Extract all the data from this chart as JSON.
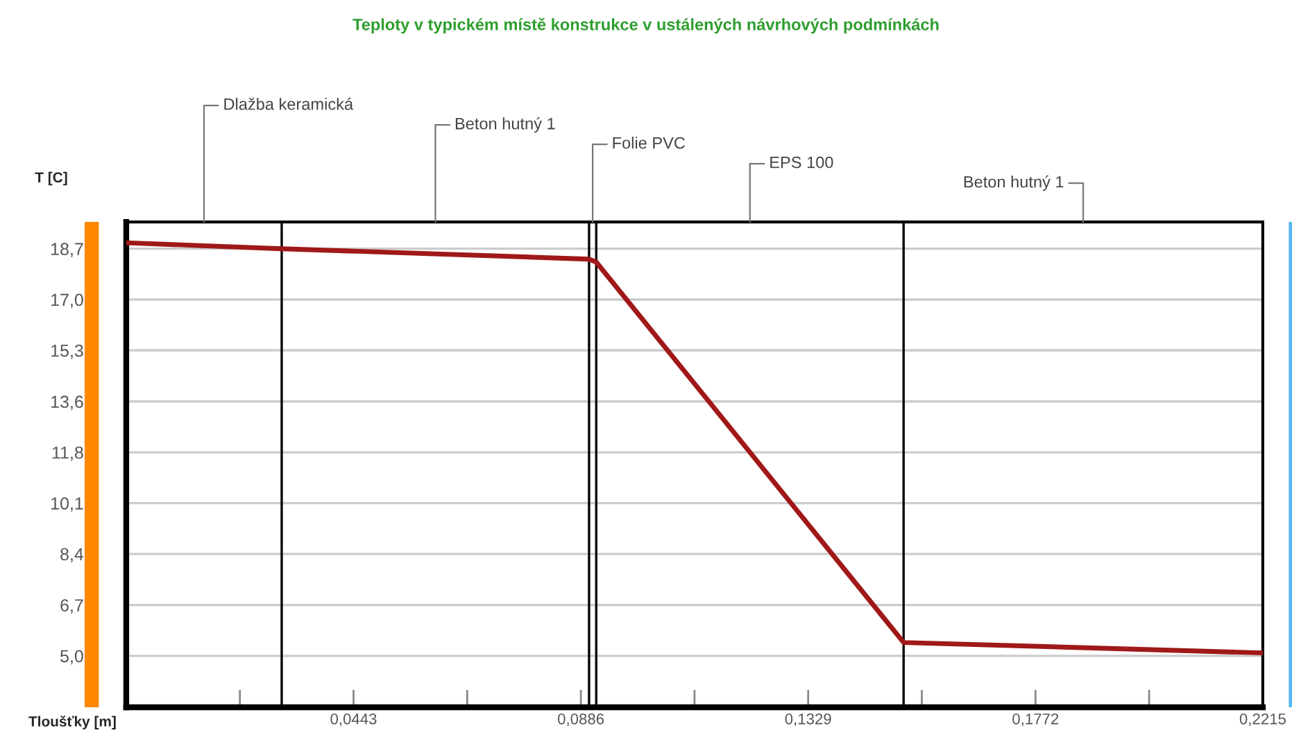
{
  "chart_data": {
    "type": "line",
    "title": "Teploty v typickém místě konstrukce v ustálených návrhových podmínkách",
    "xlabel": "Tloušťky [m]",
    "ylabel": "T [C]",
    "x": [
      0,
      0.0303,
      0.0902,
      0.0916,
      0.1515,
      0.2215
    ],
    "series": [
      {
        "color": "#a01818",
        "values": [
          18.9,
          18.7,
          18.35,
          18.25,
          5.45,
          5.1
        ]
      }
    ],
    "xlim": [
      0,
      0.2215
    ],
    "ylim": [
      3.27,
      19.6
    ],
    "xticks": [
      {
        "value": 0.02215,
        "label": null
      },
      {
        "value": 0.0443,
        "label": "0,0443"
      },
      {
        "value": 0.06645,
        "label": null
      },
      {
        "value": 0.0886,
        "label": "0,0886"
      },
      {
        "value": 0.11075,
        "label": null
      },
      {
        "value": 0.1329,
        "label": "0,1329"
      },
      {
        "value": 0.15505,
        "label": null
      },
      {
        "value": 0.1772,
        "label": "0,1772"
      },
      {
        "value": 0.19935,
        "label": null
      },
      {
        "value": 0.2215,
        "label": "0,2215"
      }
    ],
    "yticks": [
      {
        "value": 5.0,
        "label": "5,0"
      },
      {
        "value": 6.71,
        "label": "6,7"
      },
      {
        "value": 8.43,
        "label": "8,4"
      },
      {
        "value": 10.14,
        "label": "10,1"
      },
      {
        "value": 11.85,
        "label": "11,8"
      },
      {
        "value": 13.56,
        "label": "13,6"
      },
      {
        "value": 15.28,
        "label": "15,3"
      },
      {
        "value": 16.99,
        "label": "17,0"
      },
      {
        "value": 18.7,
        "label": "18,7"
      }
    ],
    "ref_lines": [
      {
        "axis": "x",
        "value": 0.0303,
        "color": "#000000"
      },
      {
        "axis": "x",
        "value": 0.0902,
        "color": "#000000"
      },
      {
        "axis": "x",
        "value": 0.0916,
        "color": "#000000"
      },
      {
        "axis": "x",
        "value": 0.1515,
        "color": "#000000"
      }
    ],
    "annotations": [
      "Dlažba keramická",
      "Beton hutný 1",
      {
        "text": "Folie PVC",
        "x": 0.0909,
        "y": 19.6
      },
      "EPS 100",
      "Beton hutný 1"
    ],
    "grid": "y",
    "line_style": "solid",
    "marker": "none"
  }
}
